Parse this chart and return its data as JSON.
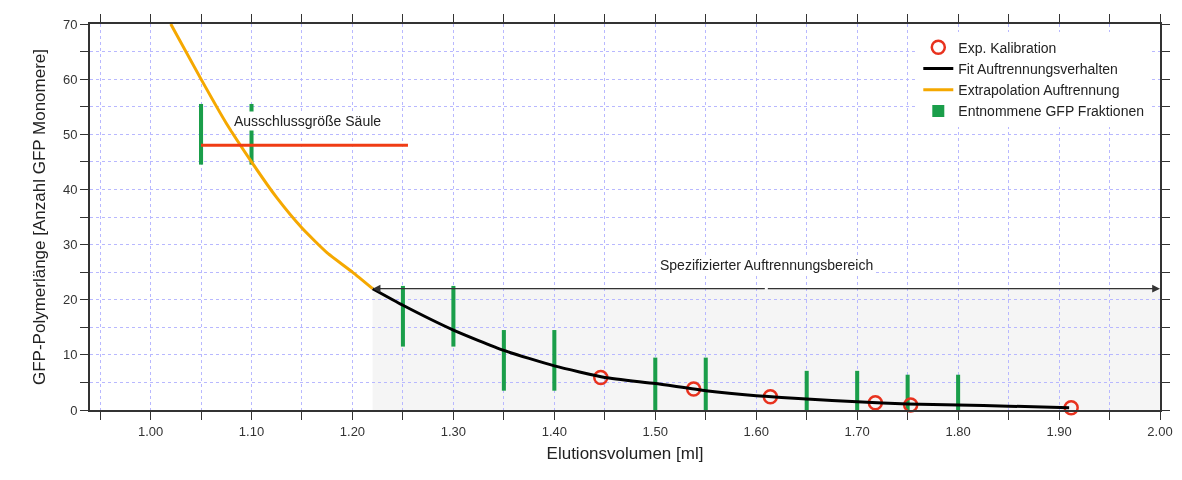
{
  "chart_data": {
    "type": "line",
    "xlabel": "Elutionsvolumen [ml]",
    "ylabel": "GFP-Polymerlänge [Anzahl GFP Monomere]",
    "xlim": [
      0.94,
      2.0
    ],
    "ylim": [
      0,
      70
    ],
    "xticks": [
      {
        "value": 0.95,
        "label": null
      },
      {
        "value": 1.0,
        "label": "1.00"
      },
      {
        "value": 1.05,
        "label": null
      },
      {
        "value": 1.1,
        "label": "1.10"
      },
      {
        "value": 1.15,
        "label": null
      },
      {
        "value": 1.2,
        "label": "1.20"
      },
      {
        "value": 1.25,
        "label": null
      },
      {
        "value": 1.3,
        "label": "1.30"
      },
      {
        "value": 1.35,
        "label": null
      },
      {
        "value": 1.4,
        "label": "1.40"
      },
      {
        "value": 1.45,
        "label": null
      },
      {
        "value": 1.5,
        "label": "1.50"
      },
      {
        "value": 1.55,
        "label": null
      },
      {
        "value": 1.6,
        "label": "1.60"
      },
      {
        "value": 1.65,
        "label": null
      },
      {
        "value": 1.7,
        "label": "1.70"
      },
      {
        "value": 1.75,
        "label": null
      },
      {
        "value": 1.8,
        "label": "1.80"
      },
      {
        "value": 1.85,
        "label": null
      },
      {
        "value": 1.9,
        "label": "1.90"
      },
      {
        "value": 1.95,
        "label": null
      },
      {
        "value": 2.0,
        "label": "2.00"
      }
    ],
    "yticks": [
      0,
      {
        "value": 5,
        "label": null
      },
      10,
      {
        "value": 15,
        "label": null
      },
      20,
      {
        "value": 25,
        "label": null
      },
      30,
      {
        "value": 35,
        "label": null
      },
      40,
      {
        "value": 45,
        "label": null
      },
      50,
      {
        "value": 55,
        "label": null
      },
      60,
      {
        "value": 65,
        "label": null
      },
      70
    ],
    "grid": true,
    "legend": "top right",
    "series": [
      {
        "type": "area",
        "color": "#f2f2f2",
        "x": [
          1.22,
          2.0
        ],
        "values": [
          22,
          22
        ]
      },
      {
        "name": "Exp. Kalibration",
        "type": "scatter",
        "marker": "circle",
        "color": "#e8321e",
        "x": [
          1.446,
          1.538,
          1.614,
          1.718,
          1.753,
          1.912
        ],
        "values": [
          5.9,
          3.8,
          2.4,
          1.3,
          0.9,
          0.4
        ]
      },
      {
        "name": "Fit Auftrennungsverhalten",
        "marker": "none",
        "color": "#000000",
        "x": [
          1.22,
          1.25,
          1.3,
          1.35,
          1.4,
          1.45,
          1.5,
          1.55,
          1.6,
          1.65,
          1.7,
          1.75,
          1.8,
          1.85,
          1.91
        ],
        "values": [
          22,
          19,
          14.5,
          10.8,
          8,
          5.9,
          4.8,
          3.5,
          2.6,
          2,
          1.5,
          1.1,
          0.9,
          0.7,
          0.4
        ]
      },
      {
        "name": "Extrapolation Auftrennung",
        "marker": "none",
        "color": "#f5a800",
        "x": [
          1.02,
          1.05,
          1.075,
          1.1,
          1.125,
          1.15,
          1.175,
          1.2,
          1.22
        ],
        "values": [
          70,
          60,
          52,
          45,
          38.5,
          33,
          28.5,
          25,
          22
        ]
      },
      {
        "name": "Entnommene GFP Fraktionen",
        "type": "bar",
        "color": "#1a9e4a",
        "x": [
          1.05,
          1.1,
          1.25,
          1.3,
          1.35,
          1.4,
          1.5,
          1.55,
          1.65,
          1.7,
          1.75,
          1.8
        ],
        "base": [
          44.5,
          44.5,
          11.5,
          11.5,
          3.5,
          3.5,
          0,
          0,
          0,
          0,
          0,
          0
        ],
        "values": [
          11,
          11,
          11,
          11,
          11,
          11,
          9.5,
          9.5,
          7.1,
          7.1,
          6.4,
          6.4
        ]
      },
      {
        "marker": "none",
        "color": "#f03c14",
        "x": [
          1.05,
          1.255
        ],
        "values": [
          48,
          48
        ]
      }
    ],
    "annotations": [
      {
        "text": "Ausschlussgröße Säule",
        "x": 1.155,
        "y": 48
      },
      {
        "text": "Spezifizierter Auftrennungsbereich",
        "x": 1.61,
        "y": 22
      }
    ]
  }
}
